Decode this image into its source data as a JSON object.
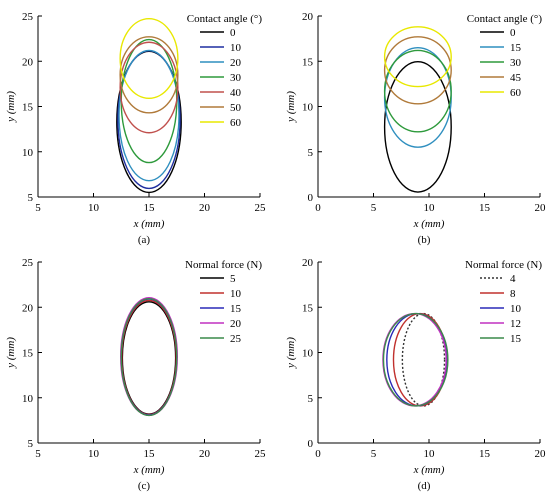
{
  "chart_data": [
    {
      "type": "line",
      "panel_label": "(a)",
      "xlabel": "x (mm)",
      "ylabel": "y (mm)",
      "xlim": [
        5,
        25
      ],
      "ylim": [
        5,
        25
      ],
      "xticks": [
        5,
        10,
        15,
        20,
        25
      ],
      "yticks": [
        5,
        10,
        15,
        20,
        25
      ],
      "legend": {
        "title": "Contact angle (°)",
        "placement": "top-right"
      },
      "series": [
        {
          "name": "0",
          "color": "#000000",
          "dash": false,
          "center": [
            15.0,
            13.3
          ],
          "semi_axes": [
            2.9,
            7.8
          ]
        },
        {
          "name": "10",
          "color": "#1f2fa0",
          "dash": false,
          "center": [
            15.0,
            13.55
          ],
          "semi_axes": [
            2.8,
            7.6
          ]
        },
        {
          "name": "20",
          "color": "#2f8fbf",
          "dash": false,
          "center": [
            15.0,
            14.0
          ],
          "semi_axes": [
            2.7,
            7.2
          ]
        },
        {
          "name": "30",
          "color": "#2e9a3c",
          "dash": false,
          "center": [
            15.0,
            15.6
          ],
          "semi_axes": [
            2.5,
            6.8
          ]
        },
        {
          "name": "40",
          "color": "#c0504d",
          "dash": false,
          "center": [
            15.0,
            17.1
          ],
          "semi_axes": [
            2.6,
            5.0
          ]
        },
        {
          "name": "50",
          "color": "#b07a3a",
          "dash": false,
          "center": [
            15.0,
            18.5
          ],
          "semi_axes": [
            2.6,
            4.2
          ]
        },
        {
          "name": "60",
          "color": "#e8e800",
          "dash": false,
          "center": [
            15.0,
            20.3
          ],
          "semi_axes": [
            2.6,
            4.4
          ]
        }
      ]
    },
    {
      "type": "line",
      "panel_label": "(b)",
      "xlabel": "x (mm)",
      "ylabel": "y (mm)",
      "xlim": [
        0,
        20
      ],
      "ylim": [
        0,
        20
      ],
      "xticks": [
        0,
        5,
        10,
        15,
        20
      ],
      "yticks": [
        0,
        5,
        10,
        15,
        20
      ],
      "legend": {
        "title": "Contact angle (°)",
        "placement": "top-right"
      },
      "series": [
        {
          "name": "0",
          "color": "#000000",
          "dash": false,
          "center": [
            9.0,
            7.75
          ],
          "semi_axes": [
            3.0,
            7.2
          ]
        },
        {
          "name": "15",
          "color": "#2f8fbf",
          "dash": false,
          "center": [
            9.0,
            11.0
          ],
          "semi_axes": [
            3.0,
            5.5
          ]
        },
        {
          "name": "30",
          "color": "#2e9a3c",
          "dash": false,
          "center": [
            9.0,
            11.7
          ],
          "semi_axes": [
            3.0,
            4.5
          ]
        },
        {
          "name": "45",
          "color": "#b07a3a",
          "dash": false,
          "center": [
            9.0,
            14.0
          ],
          "semi_axes": [
            3.0,
            3.7
          ]
        },
        {
          "name": "60",
          "color": "#e8e800",
          "dash": false,
          "center": [
            9.0,
            15.5
          ],
          "semi_axes": [
            3.0,
            3.3
          ]
        }
      ]
    },
    {
      "type": "line",
      "panel_label": "(c)",
      "xlabel": "x (mm)",
      "ylabel": "y (mm)",
      "xlim": [
        5,
        25
      ],
      "ylim": [
        5,
        25
      ],
      "xticks": [
        5,
        10,
        15,
        20,
        25
      ],
      "yticks": [
        5,
        10,
        15,
        20,
        25
      ],
      "legend": {
        "title": "Normal force (N)",
        "placement": "top-right"
      },
      "series": [
        {
          "name": "5",
          "color": "#000000",
          "dash": false,
          "center": [
            15.0,
            14.4
          ],
          "semi_axes": [
            2.4,
            6.2
          ]
        },
        {
          "name": "10",
          "color": "#c0302d",
          "dash": false,
          "center": [
            15.0,
            14.45
          ],
          "semi_axes": [
            2.45,
            6.3
          ]
        },
        {
          "name": "15",
          "color": "#2a2ab8",
          "dash": false,
          "center": [
            15.0,
            14.5
          ],
          "semi_axes": [
            2.5,
            6.4
          ]
        },
        {
          "name": "20",
          "color": "#c030c0",
          "dash": false,
          "center": [
            15.0,
            14.55
          ],
          "semi_axes": [
            2.55,
            6.5
          ]
        },
        {
          "name": "25",
          "color": "#3a8a4a",
          "dash": false,
          "center": [
            15.0,
            14.5
          ],
          "semi_axes": [
            2.5,
            6.45
          ]
        }
      ]
    },
    {
      "type": "line",
      "panel_label": "(d)",
      "xlabel": "x (mm)",
      "ylabel": "y (mm)",
      "xlim": [
        0,
        20
      ],
      "ylim": [
        0,
        20
      ],
      "xticks": [
        0,
        5,
        10,
        15,
        20
      ],
      "yticks": [
        0,
        5,
        10,
        15,
        20
      ],
      "legend": {
        "title": "Normal force (N)",
        "placement": "top-right"
      },
      "series": [
        {
          "name": "4",
          "color": "#333333",
          "dash": true,
          "center": [
            9.5,
            9.2
          ],
          "semi_axes": [
            1.9,
            5.1
          ]
        },
        {
          "name": "8",
          "color": "#c0302d",
          "dash": false,
          "center": [
            9.2,
            9.2
          ],
          "semi_axes": [
            2.4,
            5.1
          ]
        },
        {
          "name": "10",
          "color": "#2a2ab8",
          "dash": false,
          "center": [
            8.9,
            9.2
          ],
          "semi_axes": [
            2.7,
            5.1
          ]
        },
        {
          "name": "12",
          "color": "#c030c0",
          "dash": false,
          "center": [
            8.7,
            9.2
          ],
          "semi_axes": [
            2.85,
            5.1
          ]
        },
        {
          "name": "15",
          "color": "#3a8a4a",
          "dash": false,
          "center": [
            8.8,
            9.2
          ],
          "semi_axes": [
            2.9,
            5.1
          ]
        }
      ]
    }
  ]
}
